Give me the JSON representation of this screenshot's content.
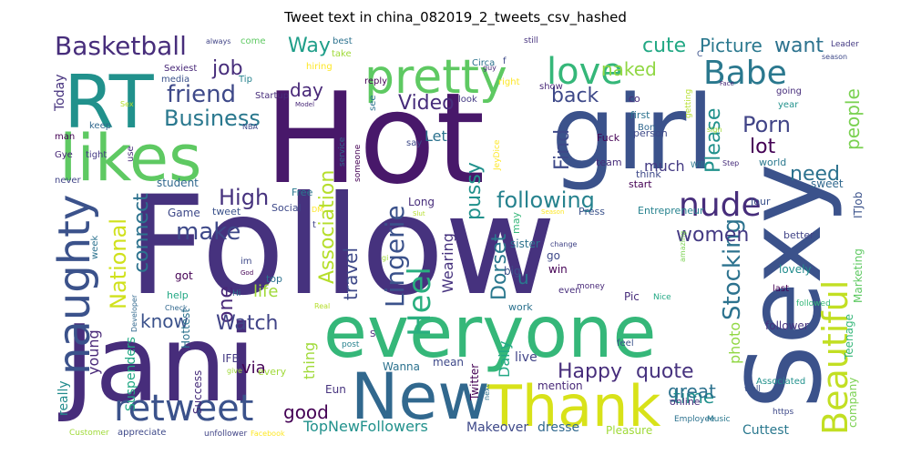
{
  "chart_data": {
    "type": "wordcloud",
    "title": "Tweet text in china_082019_2_tweets_csv_hashed",
    "words": [
      {
        "text": "Follow",
        "c": "#46327e"
      },
      {
        "text": "Hot",
        "c": "#48186a"
      },
      {
        "text": "girl",
        "c": "#3b528b"
      },
      {
        "text": "Sexy",
        "c": "#3b528b"
      },
      {
        "text": "Jani",
        "c": "#472d7b"
      },
      {
        "text": "everyone",
        "c": "#35b779"
      },
      {
        "text": "RT",
        "c": "#21918c"
      },
      {
        "text": "likes",
        "c": "#5ec962"
      },
      {
        "text": "New",
        "c": "#31688e"
      },
      {
        "text": "Thank",
        "c": "#d8e219"
      },
      {
        "text": "pretty",
        "c": "#5ec962"
      },
      {
        "text": "naughty",
        "c": "#3b528b"
      },
      {
        "text": "retweet",
        "c": "#3b528b"
      },
      {
        "text": "Beautiful",
        "c": "#c2df23"
      },
      {
        "text": "love",
        "c": "#35b779"
      },
      {
        "text": "Babe",
        "c": "#2a788e"
      },
      {
        "text": "nude",
        "c": "#472d7b"
      },
      {
        "text": "Basketball",
        "c": "#472d7b"
      },
      {
        "text": "friend",
        "c": "#3e4989"
      },
      {
        "text": "Business",
        "c": "#2a788e"
      },
      {
        "text": "High",
        "c": "#46327e"
      },
      {
        "text": "make",
        "c": "#3e4989"
      },
      {
        "text": "Heel",
        "c": "#29af7f"
      },
      {
        "text": "following",
        "c": "#26828e"
      },
      {
        "text": "Stocking",
        "c": "#2c728e"
      },
      {
        "text": "Porn",
        "c": "#414487"
      },
      {
        "text": "Happy",
        "c": "#472d7b"
      },
      {
        "text": "quote",
        "c": "#46327e"
      },
      {
        "text": "Lingerie",
        "c": "#3b528b"
      },
      {
        "text": "Association",
        "c": "#b5de2b"
      },
      {
        "text": "National",
        "c": "#d0e11c"
      },
      {
        "text": "connect",
        "c": "#2c728e"
      },
      {
        "text": "Way",
        "c": "#1f9e89"
      },
      {
        "text": "job",
        "c": "#472d7b"
      },
      {
        "text": "cute",
        "c": "#22a884"
      },
      {
        "text": "Picture",
        "c": "#2a788e"
      },
      {
        "text": "want",
        "c": "#2c728e"
      },
      {
        "text": "Video",
        "c": "#472d7b"
      },
      {
        "text": "back",
        "c": "#3e4989"
      },
      {
        "text": "naked",
        "c": "#90d743"
      },
      {
        "text": "day",
        "c": "#482878"
      },
      {
        "text": "pussy",
        "c": "#21918c"
      },
      {
        "text": "Find",
        "c": "#3e4989"
      },
      {
        "text": "Please",
        "c": "#21918c"
      },
      {
        "text": "people",
        "c": "#7ad151"
      },
      {
        "text": "lot",
        "c": "#440154"
      },
      {
        "text": "need",
        "c": "#2c728e"
      },
      {
        "text": "women",
        "c": "#443a83"
      },
      {
        "text": "Dorset",
        "c": "#2a788e"
      },
      {
        "text": "travel",
        "c": "#3e4989"
      },
      {
        "text": "one",
        "c": "#482878"
      },
      {
        "text": "know",
        "c": "#3b528b"
      },
      {
        "text": "Watch",
        "c": "#414487"
      },
      {
        "text": "life",
        "c": "#a0da39"
      },
      {
        "text": "good",
        "c": "#440154"
      },
      {
        "text": "time",
        "c": "#21918c"
      },
      {
        "text": "great",
        "c": "#2c728e"
      },
      {
        "text": "TopNewFollowers",
        "c": "#21918c"
      },
      {
        "text": "Let",
        "c": "#2c728e"
      },
      {
        "text": "u",
        "c": "#2a788e"
      },
      {
        "text": "much",
        "c": "#443a83"
      },
      {
        "text": "Daily",
        "c": "#22a884"
      },
      {
        "text": "Wearing",
        "c": "#46327e"
      },
      {
        "text": "photo",
        "c": "#90d743"
      },
      {
        "text": "young",
        "c": "#482878"
      },
      {
        "text": "via",
        "c": "#440154"
      },
      {
        "text": "thing",
        "c": "#a0da39"
      },
      {
        "text": "Today",
        "c": "#46327e"
      },
      {
        "text": "really",
        "c": "#228c8d"
      },
      {
        "text": "Suspenders",
        "c": "#22a884"
      },
      {
        "text": "Success",
        "c": "#472d7b"
      },
      {
        "text": "Teenage",
        "c": "#35b779"
      },
      {
        "text": "Marketing",
        "c": "#5ec962"
      },
      {
        "text": "ITJob",
        "c": "#3b528b"
      },
      {
        "text": "company",
        "c": "#7ad151"
      },
      {
        "text": "Cuttest",
        "c": "#2a788e"
      },
      {
        "text": "Makeover",
        "c": "#3e4989"
      },
      {
        "text": "dresse",
        "c": "#31688e"
      },
      {
        "text": "Pleasure",
        "c": "#a0da39"
      },
      {
        "text": "Eun",
        "c": "#46327e"
      },
      {
        "text": "Wanna",
        "c": "#2c728e"
      },
      {
        "text": "Twitter",
        "c": "#440154"
      },
      {
        "text": "live",
        "c": "#414487"
      },
      {
        "text": "mention",
        "c": "#482878"
      },
      {
        "text": "online",
        "c": "#472d7b"
      },
      {
        "text": "mean",
        "c": "#3e4989"
      },
      {
        "text": "IFB",
        "c": "#443a83"
      },
      {
        "text": "every",
        "c": "#a0da39"
      },
      {
        "text": "Hottest",
        "c": "#2c728e"
      },
      {
        "text": "help",
        "c": "#22a884"
      },
      {
        "text": "got",
        "c": "#440154"
      },
      {
        "text": "top",
        "c": "#2c728e"
      },
      {
        "text": "Social",
        "c": "#3e4989"
      },
      {
        "text": "tweet",
        "c": "#3b528b"
      },
      {
        "text": "Game",
        "c": "#3e4989"
      },
      {
        "text": "student",
        "c": "#31688e"
      },
      {
        "text": "Free",
        "c": "#2a788e"
      },
      {
        "text": "Long",
        "c": "#472d7b"
      },
      {
        "text": "may",
        "c": "#35b779"
      },
      {
        "text": "sister",
        "c": "#2c728e"
      },
      {
        "text": "big",
        "c": "#3b528b"
      },
      {
        "text": "go",
        "c": "#3e4989"
      },
      {
        "text": "win",
        "c": "#440154"
      },
      {
        "text": "work",
        "c": "#2c728e"
      },
      {
        "text": "Pic",
        "c": "#472d7b"
      },
      {
        "text": "follower",
        "c": "#46327e"
      },
      {
        "text": "Press",
        "c": "#3b528b"
      },
      {
        "text": "Entrepreneur",
        "c": "#26828e"
      },
      {
        "text": "lovely",
        "c": "#228c8d"
      },
      {
        "text": "better",
        "c": "#414487"
      },
      {
        "text": "last",
        "c": "#440154"
      },
      {
        "text": "world",
        "c": "#2a788e"
      },
      {
        "text": "Jour",
        "c": "#3b528b"
      },
      {
        "text": "sweet",
        "c": "#31688e"
      },
      {
        "text": "start",
        "c": "#440154"
      },
      {
        "text": "team",
        "c": "#472d7b"
      },
      {
        "text": "think",
        "c": "#3e4989"
      },
      {
        "text": "Fuck",
        "c": "#440154"
      },
      {
        "text": "person",
        "c": "#3e4989"
      },
      {
        "text": "first",
        "c": "#2c728e"
      },
      {
        "text": "Bon",
        "c": "#31688e"
      },
      {
        "text": "co",
        "c": "#472d7b"
      },
      {
        "text": "look",
        "c": "#443a83"
      },
      {
        "text": "reply",
        "c": "#440154"
      },
      {
        "text": "right",
        "c": "#fde725"
      },
      {
        "text": "Circa",
        "c": "#2c728e"
      },
      {
        "text": "show",
        "c": "#482878"
      },
      {
        "text": "going",
        "c": "#472d7b"
      },
      {
        "text": "year",
        "c": "#21918c"
      },
      {
        "text": "Leader",
        "c": "#443a83"
      },
      {
        "text": "season",
        "c": "#3e4989"
      },
      {
        "text": "Face",
        "c": "#482878"
      },
      {
        "text": "hiring",
        "c": "#fde725"
      },
      {
        "text": "take",
        "c": "#a0da39"
      },
      {
        "text": "best",
        "c": "#2c728e"
      },
      {
        "text": "always",
        "c": "#414487"
      },
      {
        "text": "still",
        "c": "#46327e"
      },
      {
        "text": "guy",
        "c": "#482878"
      },
      {
        "text": "come",
        "c": "#5ec962"
      },
      {
        "text": "Sexiest",
        "c": "#482878"
      },
      {
        "text": "media",
        "c": "#3b528b"
      },
      {
        "text": "Tip",
        "c": "#26828e"
      },
      {
        "text": "Startup",
        "c": "#472d7b"
      },
      {
        "text": "keep",
        "c": "#31688e"
      },
      {
        "text": "man",
        "c": "#440154"
      },
      {
        "text": "tight",
        "c": "#443a83"
      },
      {
        "text": "use",
        "c": "#472d7b"
      },
      {
        "text": "NBA",
        "c": "#3e4989"
      },
      {
        "text": "Gye",
        "c": "#482878"
      },
      {
        "text": "never",
        "c": "#414487"
      },
      {
        "text": "Model",
        "c": "#482878"
      },
      {
        "text": "see",
        "c": "#2c728e"
      },
      {
        "text": "say",
        "c": "#3e4989"
      },
      {
        "text": "someone",
        "c": "#440154"
      },
      {
        "text": "service",
        "c": "#31688e"
      },
      {
        "text": "JeyDice",
        "c": "#fde725"
      },
      {
        "text": "getting",
        "c": "#b5de2b"
      },
      {
        "text": "sign",
        "c": "#a0da39"
      },
      {
        "text": "Step",
        "c": "#472d7b"
      },
      {
        "text": "Will",
        "c": "#2a788e"
      },
      {
        "text": "week",
        "c": "#2c728e"
      },
      {
        "text": "Slut",
        "c": "#b5de2b"
      },
      {
        "text": "Season",
        "c": "#fde725"
      },
      {
        "text": "amazing",
        "c": "#7ad151"
      },
      {
        "text": "Employee",
        "c": "#2c728e"
      },
      {
        "text": "Music",
        "c": "#2a788e"
      },
      {
        "text": "Associated",
        "c": "#21918c"
      },
      {
        "text": "change",
        "c": "#414487"
      },
      {
        "text": "even",
        "c": "#472d7b"
      },
      {
        "text": "money",
        "c": "#482878"
      },
      {
        "text": "Nice",
        "c": "#22a884"
      },
      {
        "text": "followed",
        "c": "#35b779"
      },
      {
        "text": "feel",
        "c": "#3b528b"
      },
      {
        "text": "post",
        "c": "#26828e"
      },
      {
        "text": "Real",
        "c": "#b5de2b"
      },
      {
        "text": "God",
        "c": "#440154"
      },
      {
        "text": "give",
        "c": "#a0da39"
      },
      {
        "text": "Developer",
        "c": "#31688e"
      },
      {
        "text": "Customer",
        "c": "#a0da39"
      },
      {
        "text": "appreciate",
        "c": "#3e4989"
      },
      {
        "text": "unfollower",
        "c": "#414487"
      },
      {
        "text": "Facebook",
        "c": "#fde725"
      },
      {
        "text": "https",
        "c": "#3e4989"
      },
      {
        "text": "well",
        "c": "#3b528b"
      },
      {
        "text": "Check",
        "c": "#31688e"
      },
      {
        "text": "Hi",
        "c": "#2c728e"
      },
      {
        "text": "im",
        "c": "#3e4989"
      },
      {
        "text": "DM",
        "c": "#fde725"
      },
      {
        "text": "gi",
        "c": "#a0da39"
      },
      {
        "text": "Sex",
        "c": "#b5de2b"
      },
      {
        "text": "next",
        "c": "#2c728e"
      },
      {
        "text": "f",
        "c": "#3e4989"
      },
      {
        "text": "t",
        "c": "#414487"
      },
      {
        "text": "S",
        "c": "#482878"
      },
      {
        "text": "C",
        "c": "#3b528b"
      }
    ]
  }
}
